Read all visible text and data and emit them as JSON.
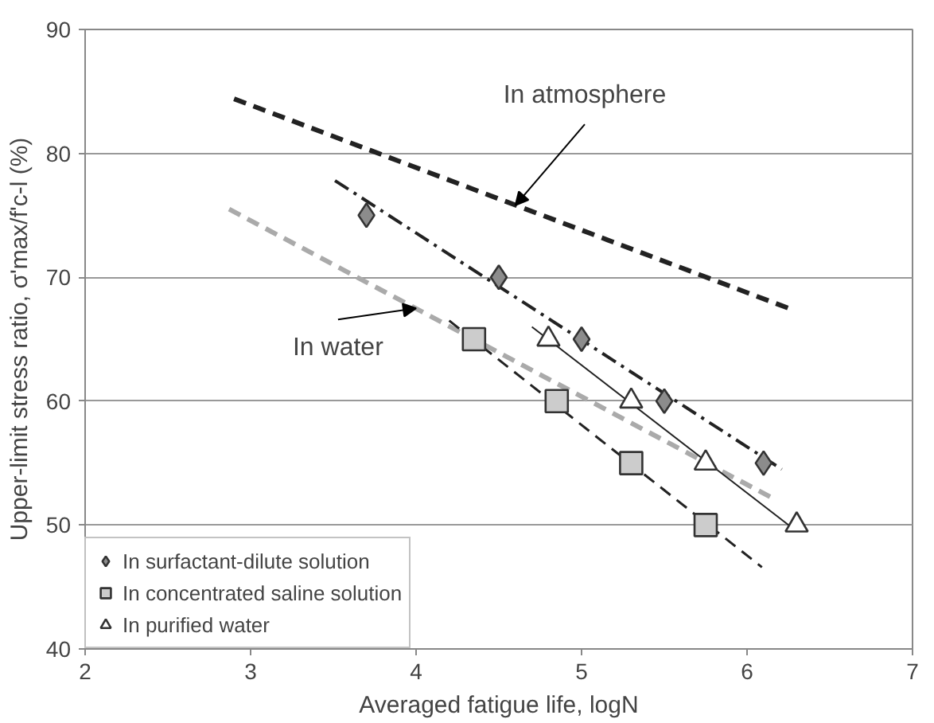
{
  "chart_data": {
    "type": "scatter",
    "xlabel": "Averaged fatigue life, logN",
    "ylabel": "Upper-limit stress ratio, σ'max/f'c-l (%)",
    "xlim": [
      2,
      7
    ],
    "ylim": [
      40,
      90
    ],
    "xticks": [
      2,
      3,
      4,
      5,
      6,
      7
    ],
    "yticks": [
      40,
      50,
      60,
      70,
      80,
      90
    ],
    "grid": "y",
    "legend": "bottom left",
    "series": [
      {
        "name": "In surfactant-dilute solution",
        "marker": "diamond",
        "color": "#8c8c8c",
        "x": [
          3.7,
          4.5,
          5.0,
          5.5,
          6.1
        ],
        "values": [
          75,
          70,
          65,
          60,
          55
        ]
      },
      {
        "name": "In concentrated saline solution",
        "marker": "square",
        "color": "#cccccc",
        "x": [
          4.35,
          4.85,
          5.3,
          5.75
        ],
        "values": [
          65,
          60,
          55,
          50
        ]
      },
      {
        "name": "In purified water",
        "marker": "triangle",
        "color": "#ffffff",
        "x": [
          4.8,
          5.3,
          5.75,
          6.3
        ],
        "values": [
          65,
          60,
          55,
          50
        ]
      },
      {
        "type": "line",
        "line_style": "dashed",
        "color": "#222222",
        "x": [
          2.9,
          6.27
        ],
        "values": [
          84.4,
          67.4
        ]
      },
      {
        "type": "line",
        "line_style": "dashed",
        "color": "#aaaaaa",
        "x": [
          2.87,
          6.15
        ],
        "values": [
          75.5,
          52.2
        ]
      },
      {
        "type": "line",
        "line_style": "dashdot",
        "color": "#222222",
        "x": [
          3.51,
          6.21
        ],
        "values": [
          77.8,
          54.5
        ]
      },
      {
        "type": "line",
        "line_style": "dashed",
        "color": "#222222",
        "x": [
          4.2,
          6.09
        ],
        "values": [
          66.5,
          46.6
        ]
      },
      {
        "type": "line",
        "line_style": "solid",
        "color": "#222222",
        "x": [
          4.7,
          6.3
        ],
        "values": [
          66,
          49.5
        ]
      }
    ],
    "annotations": [
      {
        "text": "In atmosphere",
        "x": 4.6,
        "y": 75.8
      },
      {
        "text": "In water",
        "x": 4.0,
        "y": 67.5
      }
    ]
  }
}
